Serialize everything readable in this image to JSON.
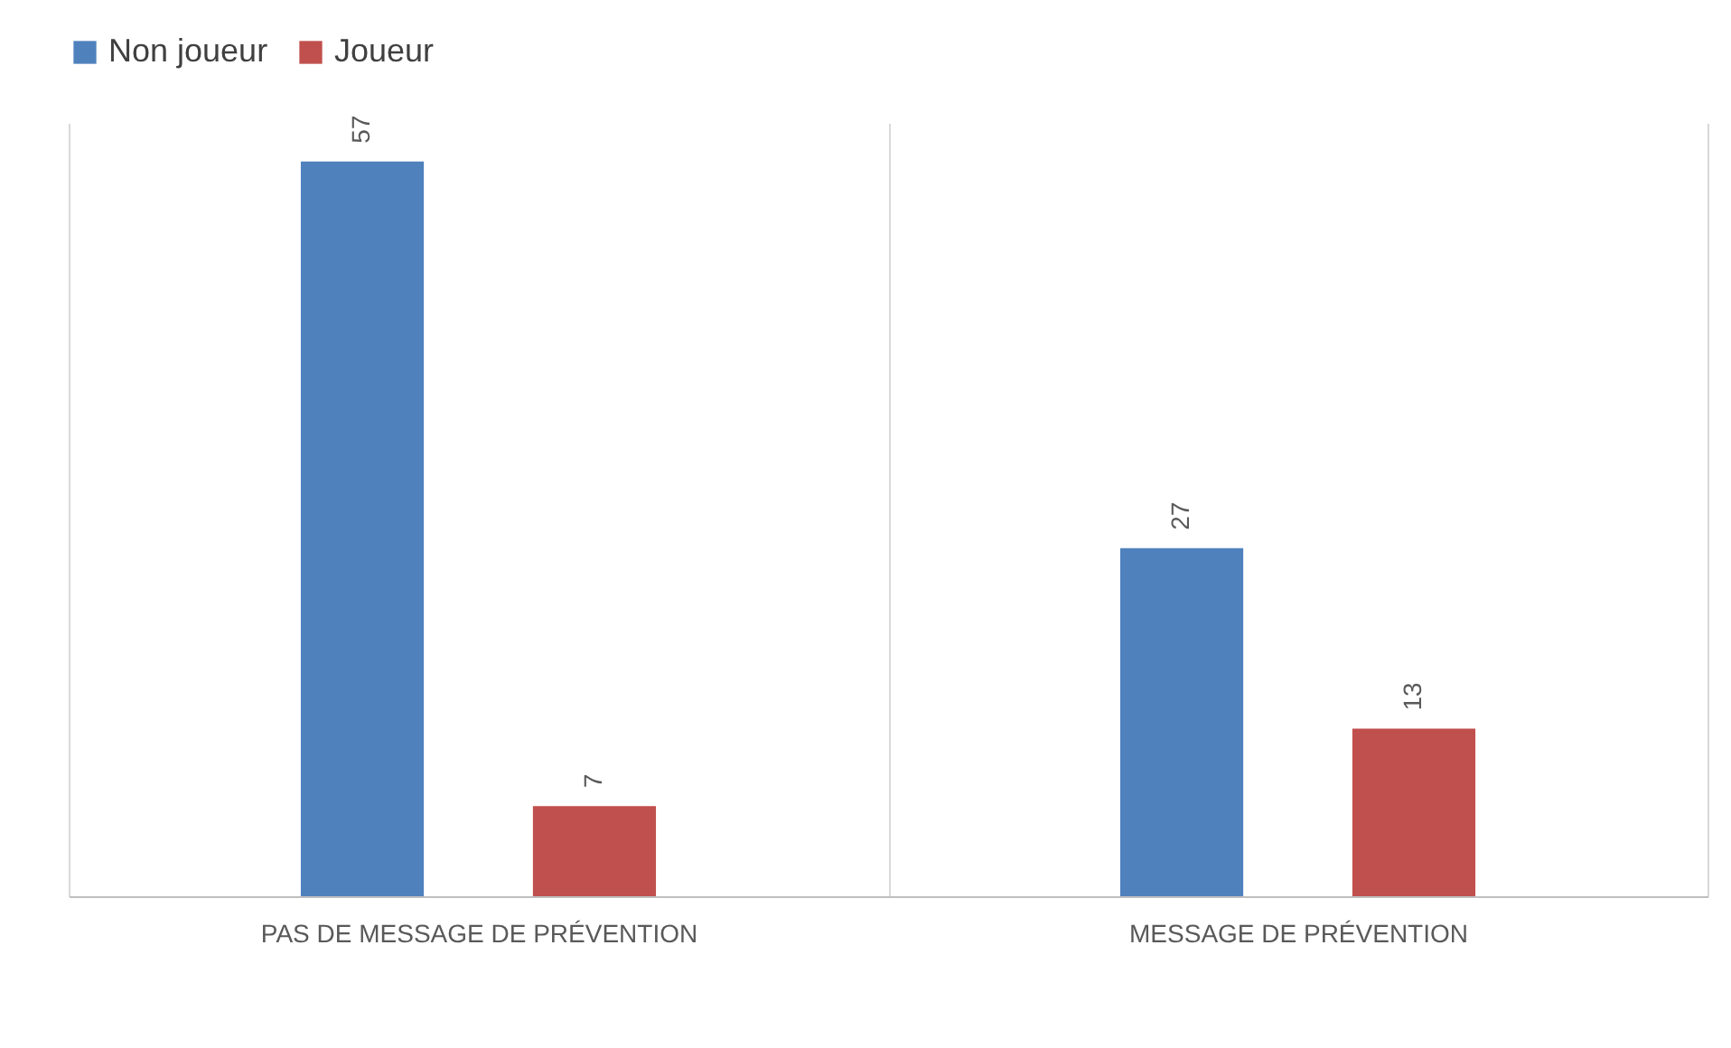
{
  "chart_data": {
    "type": "bar",
    "categories": [
      "PAS DE MESSAGE DE PRÉVENTION",
      "MESSAGE DE PRÉVENTION"
    ],
    "series": [
      {
        "name": "Non joueur",
        "color": "#4f81bd",
        "values": [
          57,
          27
        ]
      },
      {
        "name": "Joueur",
        "color": "#c0504d",
        "values": [
          7,
          13
        ]
      }
    ],
    "data_labels": true,
    "legend": "top",
    "grid": "x"
  }
}
